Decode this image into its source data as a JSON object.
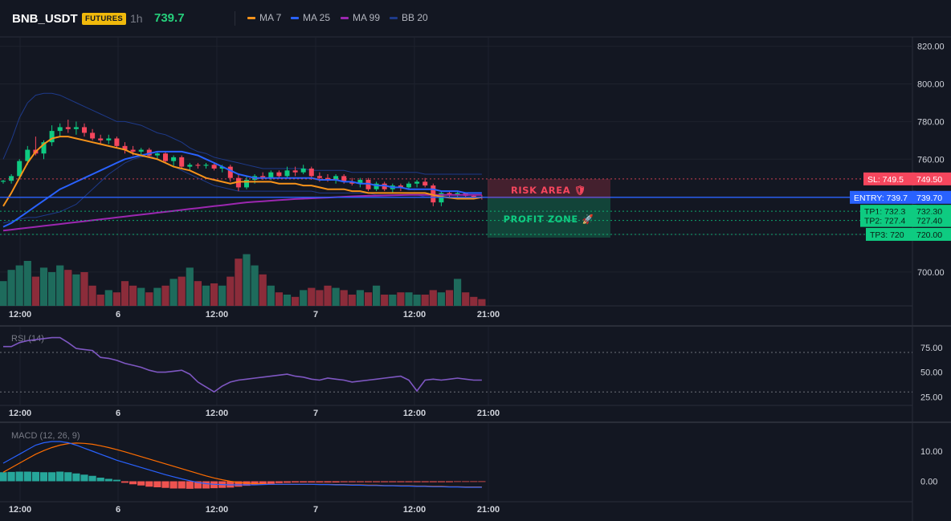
{
  "header": {
    "symbol": "BNB_USDT",
    "badge": "FUTURES",
    "timeframe": "1h",
    "price": "739.7",
    "indicators": [
      {
        "label": "MA 7",
        "color": "#f7931a"
      },
      {
        "label": "MA 25",
        "color": "#2962ff"
      },
      {
        "label": "MA 99",
        "color": "#9c27b0"
      },
      {
        "label": "BB 20",
        "color": "#1e3a8a"
      }
    ]
  },
  "colors": {
    "up": "#0ecb81",
    "down": "#f6465d",
    "vol_up": "#1e6b5c",
    "vol_down": "#8b2c3a",
    "ma7": "#f7931a",
    "ma25": "#2962ff",
    "ma99": "#9c27b0",
    "bb": "#1e3a8a",
    "rsi": "#7e57c2",
    "macd": "#2962ff",
    "signal": "#ff6d00",
    "hist_up": "#26a69a",
    "hist_down": "#ef5350"
  },
  "time_labels": [
    "12:00",
    "6",
    "12:00",
    "7",
    "12:00",
    "21:00"
  ],
  "chart_data": {
    "type": "candlestick",
    "price_axis": {
      "ylim": [
        682,
        822
      ],
      "ticks": [
        700,
        720,
        740,
        760,
        780,
        800,
        820
      ],
      "tick_labels": [
        "700.00",
        "720.00",
        "740.00",
        "760.00",
        "780.00",
        "800.00",
        "820.00"
      ]
    },
    "candles": [
      [
        748,
        749,
        747,
        748.5
      ],
      [
        748.5,
        752,
        747,
        751
      ],
      [
        751,
        760,
        750,
        759
      ],
      [
        759,
        767,
        757,
        765
      ],
      [
        765,
        772,
        762,
        763
      ],
      [
        763,
        770,
        760,
        769
      ],
      [
        769,
        778,
        767,
        775
      ],
      [
        775,
        779,
        772,
        777
      ],
      [
        777,
        781,
        774,
        776
      ],
      [
        776,
        780,
        773,
        777
      ],
      [
        777,
        779,
        772,
        774
      ],
      [
        774,
        776,
        770,
        771
      ],
      [
        771,
        773,
        768,
        770
      ],
      [
        770,
        773,
        768,
        771
      ],
      [
        771,
        772,
        766,
        767
      ],
      [
        767,
        769,
        763,
        765
      ],
      [
        765,
        767,
        762,
        764
      ],
      [
        764,
        766,
        762,
        765
      ],
      [
        765,
        766,
        761,
        762
      ],
      [
        762,
        764,
        760,
        763
      ],
      [
        763,
        764,
        758,
        759
      ],
      [
        759,
        762,
        756,
        761
      ],
      [
        761,
        762,
        755,
        756
      ],
      [
        756,
        758,
        754,
        757
      ],
      [
        757,
        758,
        755,
        756.5
      ],
      [
        756.5,
        758,
        755,
        757
      ],
      [
        757,
        758,
        754,
        755
      ],
      [
        755,
        757,
        753,
        756
      ],
      [
        756,
        757,
        748,
        750
      ],
      [
        750,
        752,
        743,
        745
      ],
      [
        745,
        751,
        744,
        749
      ],
      [
        749,
        752,
        747,
        751
      ],
      [
        751,
        753,
        749,
        750
      ],
      [
        750,
        754,
        749,
        753
      ],
      [
        753,
        754,
        750,
        751
      ],
      [
        751,
        756,
        750,
        754
      ],
      [
        754,
        756,
        751,
        753
      ],
      [
        753,
        757,
        752,
        755
      ],
      [
        755,
        756,
        749,
        751
      ],
      [
        751,
        753,
        748,
        750
      ],
      [
        750,
        752,
        748,
        749
      ],
      [
        749,
        752,
        747,
        751
      ],
      [
        751,
        752,
        747,
        748
      ],
      [
        748,
        750,
        746,
        747
      ],
      [
        747,
        750,
        745,
        749
      ],
      [
        749,
        750,
        743,
        744
      ],
      [
        744,
        748,
        743,
        747
      ],
      [
        747,
        748,
        743,
        744
      ],
      [
        744,
        747,
        742,
        746
      ],
      [
        746,
        747,
        743,
        745
      ],
      [
        745,
        748,
        744,
        747
      ],
      [
        747,
        749,
        745,
        748
      ],
      [
        748,
        750,
        745,
        746
      ],
      [
        746,
        747,
        735,
        737
      ],
      [
        737,
        743,
        735,
        742
      ],
      [
        742,
        743,
        740,
        741
      ],
      [
        741,
        743,
        739,
        742
      ],
      [
        742,
        742,
        740,
        740.5
      ],
      [
        740.5,
        741,
        739,
        740
      ],
      [
        740,
        741,
        738.5,
        739.7
      ]
    ],
    "volume": [
      22,
      32,
      36,
      40,
      26,
      34,
      30,
      36,
      32,
      28,
      30,
      18,
      10,
      14,
      12,
      22,
      18,
      16,
      12,
      16,
      18,
      24,
      26,
      34,
      22,
      18,
      20,
      18,
      26,
      42,
      46,
      36,
      28,
      18,
      12,
      10,
      8,
      14,
      16,
      14,
      18,
      16,
      14,
      10,
      14,
      12,
      18,
      10,
      10,
      12,
      12,
      10,
      10,
      14,
      12,
      14,
      24,
      12,
      8,
      6
    ],
    "volume_max": 50,
    "ma7": [
      735,
      742,
      750,
      758,
      764,
      768,
      771,
      772,
      772,
      771,
      770,
      769,
      768,
      767,
      766,
      765,
      763,
      762,
      761,
      760,
      758,
      756,
      755,
      754,
      752,
      750,
      749,
      748,
      747,
      748,
      748,
      748,
      748,
      748,
      747,
      747,
      747,
      746,
      746,
      745,
      744,
      744,
      744,
      743,
      743,
      742,
      742,
      742,
      742,
      742,
      742,
      742,
      742,
      741,
      740,
      739.5,
      739,
      739,
      739,
      739.7
    ],
    "ma25": [
      724,
      726,
      729,
      732,
      735,
      738,
      741,
      744,
      746,
      748,
      750,
      752,
      754,
      756,
      758,
      760,
      761,
      762,
      763,
      764,
      764,
      764,
      764,
      763,
      762,
      760,
      758,
      756,
      754,
      752,
      751,
      750,
      750,
      750,
      750,
      750,
      750,
      750,
      750,
      749,
      749,
      749,
      748,
      748,
      747,
      747,
      746,
      746,
      745,
      745,
      744,
      744,
      744,
      744,
      743,
      743,
      743,
      742,
      742,
      742
    ],
    "ma99": [
      722,
      722.5,
      723,
      723.5,
      724,
      724.5,
      725,
      725.5,
      726,
      726.5,
      727,
      727.5,
      728,
      728.5,
      729,
      729.5,
      730,
      730.5,
      731,
      731.5,
      732,
      732.5,
      733,
      733.5,
      734,
      734.5,
      735,
      735.5,
      736,
      736.5,
      737,
      737.3,
      737.6,
      737.9,
      738.2,
      738.5,
      738.8,
      739,
      739.2,
      739.4,
      739.6,
      739.8,
      740,
      740.2,
      740.4,
      740.5,
      740.6,
      740.7,
      740.8,
      740.9,
      741,
      741,
      741,
      741,
      741,
      741,
      741,
      741,
      741,
      741
    ],
    "bb_upper": [
      760,
      770,
      782,
      790,
      794,
      795,
      795,
      794,
      792,
      790,
      788,
      786,
      784,
      782,
      780,
      780,
      779,
      778,
      776,
      774,
      773,
      771,
      769,
      766,
      764,
      763,
      761,
      760,
      759,
      758,
      757,
      756,
      755,
      755,
      755,
      755,
      755,
      755,
      754,
      754,
      754,
      754,
      754,
      753,
      753,
      753,
      753,
      753,
      753,
      753,
      753,
      753,
      752,
      752,
      752,
      752,
      752,
      752,
      752,
      752
    ],
    "bb_lower": [
      726,
      727,
      728,
      729,
      729,
      730,
      731,
      732,
      734,
      736,
      740,
      744,
      748,
      752,
      755,
      758,
      760,
      761,
      762,
      760,
      758,
      756,
      754,
      752,
      750,
      748,
      746,
      745,
      744,
      743,
      743,
      743,
      743,
      743,
      743,
      743,
      743,
      743,
      743,
      742,
      742,
      742,
      742,
      742,
      742,
      742,
      741,
      741,
      741,
      741,
      741,
      741,
      740,
      740,
      740,
      740,
      740,
      740,
      740,
      740
    ],
    "levels": {
      "sl": {
        "label": "SL: 749.5",
        "value": 749.5,
        "value_label": "749.50",
        "color": "#f6465d"
      },
      "entry": {
        "label": "ENTRY: 739.7",
        "value": 739.7,
        "value_label": "739.70",
        "color": "#2962ff"
      },
      "tp1": {
        "label": "TP1: 732.3",
        "value": 732.3,
        "value_label": "732.30",
        "color": "#0ecb81"
      },
      "tp2": {
        "label": "TP2: 727.4",
        "value": 727.4,
        "value_label": "727.40",
        "color": "#0ecb81"
      },
      "tp3": {
        "label": "TP3: 720",
        "value": 720,
        "value_label": "720.00",
        "color": "#0ecb81"
      }
    },
    "zones": {
      "risk": "RISK AREA 🛡",
      "profit": "PROFIT ZONE 🚀"
    },
    "rsi": {
      "label": "RSI (14)",
      "ylim": [
        18,
        92
      ],
      "ticks": [
        25,
        50,
        75
      ],
      "tick_labels": [
        "25.00",
        "50.00",
        "75.00"
      ],
      "values": [
        76,
        76,
        80,
        82,
        83,
        84,
        85,
        85,
        80,
        74,
        73,
        72,
        65,
        64,
        62,
        59,
        57,
        55,
        52,
        50,
        50,
        51,
        52,
        48,
        40,
        35,
        30,
        36,
        40,
        42,
        43,
        44,
        45,
        46,
        47,
        48,
        46,
        45,
        43,
        42,
        44,
        43,
        42,
        40,
        41,
        42,
        43,
        44,
        45,
        46,
        42,
        31,
        42,
        43,
        42,
        43,
        44,
        43,
        42,
        42
      ]
    },
    "macd": {
      "label": "MACD (12, 26, 9)",
      "ylim": [
        -6,
        18
      ],
      "ticks": [
        0,
        10
      ],
      "tick_labels": [
        "0.00",
        "10.00"
      ],
      "macd": [
        6,
        7.5,
        9,
        10.5,
        12,
        12.8,
        13.2,
        13.2,
        12.8,
        12,
        11,
        10,
        9,
        8,
        7,
        6.2,
        5.4,
        4.6,
        3.8,
        3,
        2.2,
        1.5,
        0.8,
        0.2,
        -0.4,
        -0.8,
        -1,
        -1.1,
        -1.2,
        -1.2,
        -1.2,
        -1.2,
        -1.1,
        -1,
        -1,
        -1,
        -1,
        -1,
        -1,
        -1.1,
        -1.1,
        -1.2,
        -1.2,
        -1.3,
        -1.3,
        -1.4,
        -1.4,
        -1.5,
        -1.5,
        -1.6,
        -1.6,
        -1.7,
        -1.7,
        -1.8,
        -1.8,
        -1.9,
        -1.9,
        -2,
        -2,
        -2
      ],
      "signal": [
        3,
        4.5,
        6,
        7.5,
        9,
        10.2,
        11.2,
        12,
        12.5,
        12.7,
        12.6,
        12.3,
        11.8,
        11.2,
        10.5,
        9.8,
        9,
        8.2,
        7.4,
        6.6,
        5.8,
        5,
        4.2,
        3.4,
        2.6,
        1.8,
        1.1,
        0.5,
        0,
        -0.4,
        -0.6,
        -0.8,
        -0.9,
        -1,
        -1,
        -1,
        -1,
        -1,
        -1,
        -1,
        -1,
        -1.1,
        -1.1,
        -1.2,
        -1.2,
        -1.3,
        -1.3,
        -1.4,
        -1.4,
        -1.5,
        -1.5,
        -1.6,
        -1.6,
        -1.7,
        -1.7,
        -1.8,
        -1.8,
        -1.9,
        -1.9,
        -1.9
      ],
      "hist": [
        3,
        3.1,
        3.2,
        3.2,
        3.1,
        3,
        3,
        3.2,
        3,
        2.6,
        2.2,
        1.8,
        1.2,
        0.8,
        0.5,
        -0.5,
        -1,
        -1.4,
        -1.8,
        -2,
        -2.2,
        -2.4,
        -2.4,
        -2.5,
        -2.4,
        -2.4,
        -2.3,
        -2.2,
        -2.1,
        -1.8,
        -1.5,
        -1.2,
        -1,
        -0.8,
        -0.6,
        -0.5,
        -0.4,
        -0.4,
        -0.4,
        -0.4,
        -0.4,
        -0.4,
        -0.3,
        -0.3,
        -0.3,
        -0.3,
        -0.3,
        -0.3,
        -0.3,
        -0.3,
        -0.3,
        -0.3,
        -0.3,
        -0.3,
        -0.3,
        -0.3,
        -0.2,
        -0.2,
        -0.2,
        -0.2
      ]
    }
  }
}
